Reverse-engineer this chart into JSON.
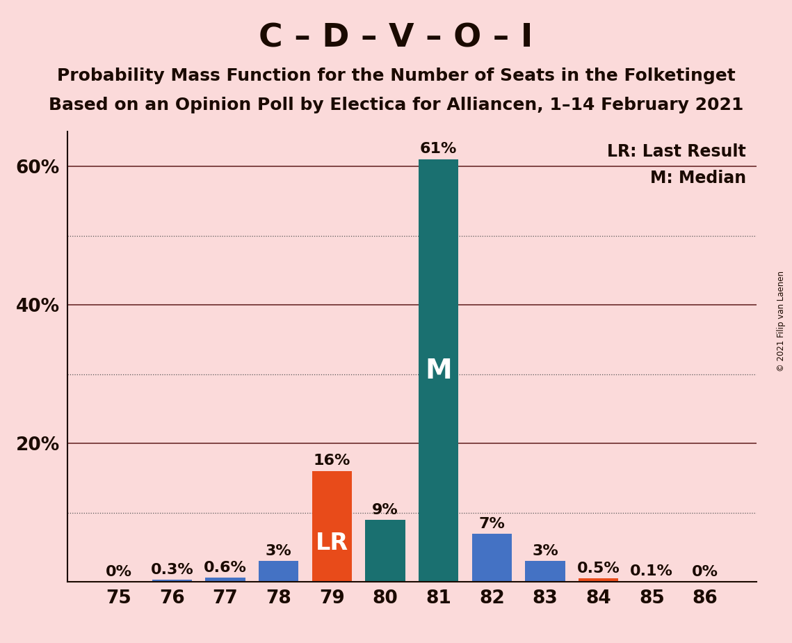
{
  "title": "C – D – V – O – I",
  "subtitle1": "Probability Mass Function for the Number of Seats in the Folketinget",
  "subtitle2": "Based on an Opinion Poll by Electica for Alliancen, 1–14 February 2021",
  "copyright": "© 2021 Filip van Laenen",
  "categories": [
    75,
    76,
    77,
    78,
    79,
    80,
    81,
    82,
    83,
    84,
    85,
    86
  ],
  "values": [
    0.0,
    0.3,
    0.6,
    3.0,
    16.0,
    9.0,
    61.0,
    7.0,
    3.0,
    0.5,
    0.1,
    0.0
  ],
  "labels": [
    "0%",
    "0.3%",
    "0.6%",
    "3%",
    "16%",
    "9%",
    "61%",
    "7%",
    "3%",
    "0.5%",
    "0.1%",
    "0%"
  ],
  "bar_colors": [
    "#4472C4",
    "#4472C4",
    "#4472C4",
    "#4472C4",
    "#E84B1A",
    "#1A7070",
    "#1A7070",
    "#4472C4",
    "#4472C4",
    "#E84B1A",
    "#4472C4",
    "#4472C4"
  ],
  "lr_index": 4,
  "median_index": 6,
  "lr_label": "LR",
  "median_label": "M",
  "legend_lr": "LR: Last Result",
  "legend_m": "M: Median",
  "ylim": [
    0,
    65
  ],
  "solid_yticks": [
    20,
    40,
    60
  ],
  "dotted_yticks": [
    10,
    30,
    50
  ],
  "ytick_labels_vals": [
    20,
    40,
    60
  ],
  "ytick_labels_strs": [
    "20%",
    "40%",
    "60%"
  ],
  "background_color": "#FBDADA",
  "bar_teal": "#1A7070",
  "bar_blue": "#4472C4",
  "bar_orange": "#E84B1A",
  "title_fontsize": 34,
  "subtitle_fontsize": 18,
  "label_fontsize": 16,
  "axis_fontsize": 19,
  "legend_fontsize": 17,
  "dotted_grid_color": "#555555",
  "solid_grid_color": "#6B2B2B",
  "text_color": "#1A0A00"
}
